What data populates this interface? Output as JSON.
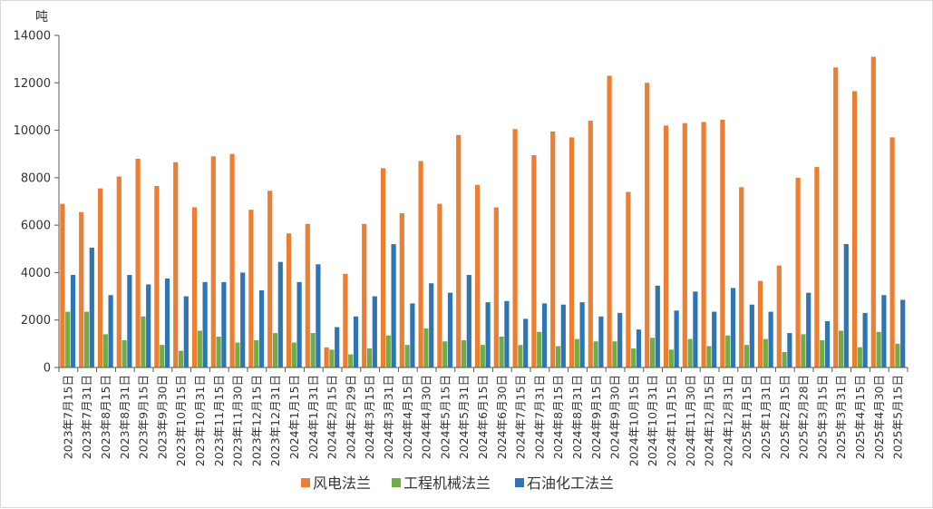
{
  "chart_data": {
    "type": "bar",
    "ylabel": "吨",
    "ylim": [
      0,
      14000
    ],
    "yticks": [
      0,
      2000,
      4000,
      6000,
      8000,
      10000,
      12000,
      14000
    ],
    "grid": false,
    "legend_position": "bottom",
    "categories": [
      "2023年7月15日",
      "2023年7月31日",
      "2023年8月15日",
      "2023年8月31日",
      "2023年9月15日",
      "2023年9月30日",
      "2023年10月15日",
      "2023年10月31日",
      "2023年11月15日",
      "2023年11月30日",
      "2023年12月15日",
      "2023年12月31日",
      "2024年1月15日",
      "2024年1月31日",
      "2024年2月15日",
      "2024年2月29日",
      "2024年3月15日",
      "2024年3月31日",
      "2024年4月15日",
      "2024年4月30日",
      "2024年5月15日",
      "2024年5月31日",
      "2024年6月15日",
      "2024年6月30日",
      "2024年7月15日",
      "2024年7月31日",
      "2024年8月15日",
      "2024年8月31日",
      "2024年9月15日",
      "2024年9月30日",
      "2024年10月15日",
      "2024年10月31日",
      "2024年11月15日",
      "2024年11月30日",
      "2024年12月15日",
      "2024年12月31日",
      "2025年1月15日",
      "2025年1月31日",
      "2025年2月15日",
      "2025年2月28日",
      "2025年3月15日",
      "2025年3月31日",
      "2025年4月15日",
      "2025年4月30日",
      "2025年5月15日"
    ],
    "series": [
      {
        "name": "风电法兰",
        "color": "#ED7D31",
        "values": [
          6900,
          6550,
          7550,
          8050,
          8800,
          7650,
          8650,
          6750,
          8900,
          9000,
          6650,
          7450,
          5650,
          6050,
          850,
          3950,
          6050,
          8400,
          6500,
          8700,
          6900,
          9800,
          7700,
          6750,
          10050,
          8950,
          9950,
          9700,
          10400,
          12300,
          7400,
          12000,
          10200,
          10300,
          10350,
          10450,
          7600,
          3650,
          4300,
          8000,
          8450,
          12650,
          11650,
          13100,
          9700
        ]
      },
      {
        "name": "工程机械法兰",
        "color": "#70AD47",
        "values": [
          2350,
          2350,
          1400,
          1150,
          2150,
          950,
          700,
          1550,
          1300,
          1050,
          1150,
          1450,
          1050,
          1450,
          750,
          550,
          800,
          1350,
          950,
          1650,
          1100,
          1150,
          950,
          1300,
          950,
          1500,
          900,
          1200,
          1100,
          1100,
          800,
          1250,
          750,
          1200,
          900,
          1350,
          950,
          1200,
          650,
          1400,
          1150,
          1550,
          850,
          1500,
          1000
        ]
      },
      {
        "name": "石油化工法兰",
        "color": "#2E75B6",
        "values": [
          3900,
          5050,
          3050,
          3900,
          3500,
          3750,
          3000,
          3600,
          3600,
          4000,
          3250,
          4450,
          3600,
          4350,
          1700,
          2150,
          3000,
          5200,
          2700,
          3550,
          3150,
          3900,
          2750,
          2800,
          2050,
          2700,
          2650,
          2750,
          2150,
          2300,
          1600,
          3450,
          2400,
          3200,
          2350,
          3350,
          2650,
          2350,
          1450,
          3150,
          1950,
          5200,
          2300,
          3050,
          2850
        ]
      }
    ]
  }
}
